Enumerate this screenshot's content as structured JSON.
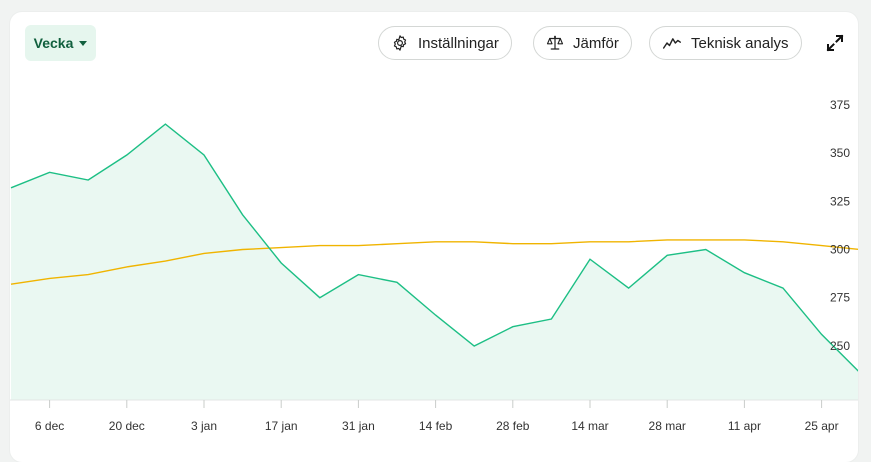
{
  "toolbar": {
    "period_label": "Vecka",
    "settings_label": "Inställningar",
    "compare_label": "Jämför",
    "technical_label": "Teknisk analys",
    "icons": [
      "gear-icon",
      "balance-scale-icon",
      "chart-line-icon",
      "expand-icon"
    ]
  },
  "chart_data": {
    "type": "area",
    "x_tick_labels": [
      "6 dec",
      "20 dec",
      "3 jan",
      "17 jan",
      "31 jan",
      "14 feb",
      "28 feb",
      "14 mar",
      "28 mar",
      "11 apr",
      "25 apr"
    ],
    "y_ticks": [
      250,
      275,
      300,
      325,
      350,
      375
    ],
    "ylim": [
      222,
      392
    ],
    "grid": false,
    "legend": "none",
    "series": [
      {
        "kind": "area",
        "color": "#1dbf85",
        "fill": "#eaf8f2",
        "points": [
          {
            "x": "29 nov",
            "y": 332
          },
          {
            "x": "6 dec",
            "y": 340
          },
          {
            "x": "13 dec",
            "y": 336
          },
          {
            "x": "20 dec",
            "y": 349
          },
          {
            "x": "27 dec",
            "y": 365
          },
          {
            "x": "3 jan",
            "y": 349
          },
          {
            "x": "10 jan",
            "y": 318
          },
          {
            "x": "17 jan",
            "y": 293
          },
          {
            "x": "24 jan",
            "y": 275
          },
          {
            "x": "31 jan",
            "y": 287
          },
          {
            "x": "7 feb",
            "y": 283
          },
          {
            "x": "14 feb",
            "y": 266
          },
          {
            "x": "21 feb",
            "y": 250
          },
          {
            "x": "28 feb",
            "y": 260
          },
          {
            "x": "7 mar",
            "y": 264
          },
          {
            "x": "14 mar",
            "y": 295
          },
          {
            "x": "21 mar",
            "y": 280
          },
          {
            "x": "28 mar",
            "y": 297
          },
          {
            "x": "4 apr",
            "y": 300
          },
          {
            "x": "11 apr",
            "y": 288
          },
          {
            "x": "18 apr",
            "y": 280
          },
          {
            "x": "25 apr",
            "y": 256
          },
          {
            "x": "2 maj",
            "y": 236
          }
        ]
      },
      {
        "kind": "line",
        "color": "#f0b400",
        "points": [
          {
            "x": "29 nov",
            "y": 282
          },
          {
            "x": "6 dec",
            "y": 285
          },
          {
            "x": "13 dec",
            "y": 287
          },
          {
            "x": "20 dec",
            "y": 291
          },
          {
            "x": "27 dec",
            "y": 294
          },
          {
            "x": "3 jan",
            "y": 298
          },
          {
            "x": "10 jan",
            "y": 300
          },
          {
            "x": "17 jan",
            "y": 301
          },
          {
            "x": "24 jan",
            "y": 302
          },
          {
            "x": "31 jan",
            "y": 302
          },
          {
            "x": "7 feb",
            "y": 303
          },
          {
            "x": "14 feb",
            "y": 304
          },
          {
            "x": "21 feb",
            "y": 304
          },
          {
            "x": "28 feb",
            "y": 303
          },
          {
            "x": "7 mar",
            "y": 303
          },
          {
            "x": "14 mar",
            "y": 304
          },
          {
            "x": "21 mar",
            "y": 304
          },
          {
            "x": "28 mar",
            "y": 305
          },
          {
            "x": "4 apr",
            "y": 305
          },
          {
            "x": "11 apr",
            "y": 305
          },
          {
            "x": "18 apr",
            "y": 304
          },
          {
            "x": "25 apr",
            "y": 302
          },
          {
            "x": "2 maj",
            "y": 300
          }
        ]
      }
    ]
  }
}
